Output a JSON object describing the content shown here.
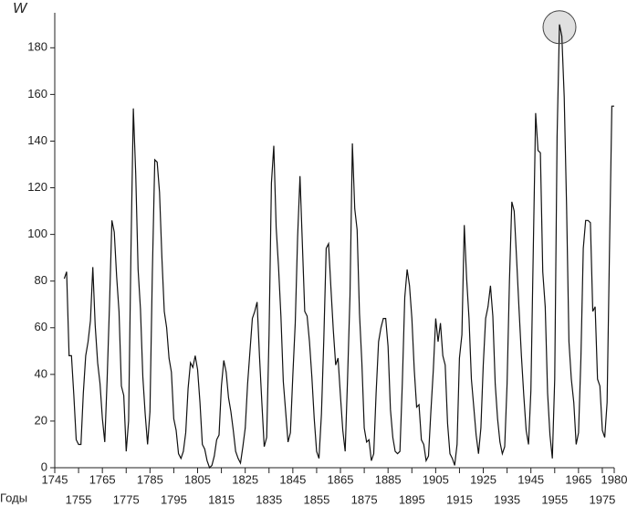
{
  "chart_data": {
    "type": "line",
    "y_label": "W",
    "x_label": "Годы",
    "color": "#111111",
    "x": [
      1749,
      1750,
      1751,
      1752,
      1753,
      1754,
      1755,
      1756,
      1757,
      1758,
      1759,
      1760,
      1761,
      1762,
      1763,
      1764,
      1765,
      1766,
      1767,
      1768,
      1769,
      1770,
      1771,
      1772,
      1773,
      1774,
      1775,
      1776,
      1777,
      1778,
      1779,
      1780,
      1781,
      1782,
      1783,
      1784,
      1785,
      1786,
      1787,
      1788,
      1789,
      1790,
      1791,
      1792,
      1793,
      1794,
      1795,
      1796,
      1797,
      1798,
      1799,
      1800,
      1801,
      1802,
      1803,
      1804,
      1805,
      1806,
      1807,
      1808,
      1809,
      1810,
      1811,
      1812,
      1813,
      1814,
      1815,
      1816,
      1817,
      1818,
      1819,
      1820,
      1821,
      1822,
      1823,
      1824,
      1825,
      1826,
      1827,
      1828,
      1829,
      1830,
      1831,
      1832,
      1833,
      1834,
      1835,
      1836,
      1837,
      1838,
      1839,
      1840,
      1841,
      1842,
      1843,
      1844,
      1845,
      1846,
      1847,
      1848,
      1849,
      1850,
      1851,
      1852,
      1853,
      1854,
      1855,
      1856,
      1857,
      1858,
      1859,
      1860,
      1861,
      1862,
      1863,
      1864,
      1865,
      1866,
      1867,
      1868,
      1869,
      1870,
      1871,
      1872,
      1873,
      1874,
      1875,
      1876,
      1877,
      1878,
      1879,
      1880,
      1881,
      1882,
      1883,
      1884,
      1885,
      1886,
      1887,
      1888,
      1889,
      1890,
      1891,
      1892,
      1893,
      1894,
      1895,
      1896,
      1897,
      1898,
      1899,
      1900,
      1901,
      1902,
      1903,
      1904,
      1905,
      1906,
      1907,
      1908,
      1909,
      1910,
      1911,
      1912,
      1913,
      1914,
      1915,
      1916,
      1917,
      1918,
      1919,
      1920,
      1921,
      1922,
      1923,
      1924,
      1925,
      1926,
      1927,
      1928,
      1929,
      1930,
      1931,
      1932,
      1933,
      1934,
      1935,
      1936,
      1937,
      1938,
      1939,
      1940,
      1941,
      1942,
      1943,
      1944,
      1945,
      1946,
      1947,
      1948,
      1949,
      1950,
      1951,
      1952,
      1953,
      1954,
      1955,
      1956,
      1957,
      1958,
      1959,
      1960,
      1961,
      1962,
      1963,
      1964,
      1965,
      1966,
      1967,
      1968,
      1969,
      1970,
      1971,
      1972,
      1973,
      1974,
      1975,
      1976,
      1977,
      1978,
      1979,
      1980
    ],
    "values": [
      81,
      84,
      48,
      48,
      31,
      12,
      10,
      10,
      32,
      48,
      54,
      63,
      86,
      61,
      45,
      36,
      21,
      11,
      38,
      70,
      106,
      101,
      82,
      67,
      35,
      31,
      7,
      20,
      93,
      154,
      126,
      85,
      68,
      39,
      23,
      10,
      24,
      83,
      132,
      131,
      118,
      90,
      67,
      60,
      47,
      41,
      21,
      16,
      6,
      4,
      7,
      15,
      34,
      45,
      43,
      48,
      42,
      28,
      10,
      8,
      3,
      0,
      1,
      5,
      12,
      14,
      35,
      46,
      41,
      30,
      24,
      16,
      7,
      4,
      2,
      9,
      17,
      36,
      50,
      64,
      67,
      71,
      48,
      28,
      9,
      13,
      57,
      122,
      138,
      103,
      86,
      65,
      37,
      24,
      11,
      15,
      40,
      62,
      99,
      125,
      96,
      67,
      65,
      54,
      39,
      21,
      7,
      4,
      23,
      55,
      94,
      96,
      77,
      59,
      44,
      47,
      31,
      16,
      7,
      38,
      74,
      139,
      111,
      102,
      66,
      45,
      17,
      11,
      12,
      3,
      6,
      32,
      54,
      60,
      64,
      64,
      52,
      25,
      13,
      7,
      6,
      7,
      36,
      73,
      85,
      78,
      64,
      42,
      26,
      27,
      12,
      10,
      3,
      5,
      24,
      42,
      64,
      54,
      62,
      48,
      44,
      19,
      6,
      4,
      1,
      10,
      47,
      57,
      104,
      81,
      64,
      38,
      26,
      14,
      6,
      17,
      44,
      64,
      69,
      78,
      65,
      36,
      21,
      11,
      6,
      9,
      36,
      80,
      114,
      110,
      89,
      68,
      48,
      31,
      16,
      10,
      33,
      93,
      152,
      136,
      135,
      84,
      69,
      32,
      14,
      4,
      38,
      142,
      190,
      185,
      159,
      112,
      54,
      38,
      28,
      10,
      15,
      47,
      94,
      106,
      106,
      105,
      67,
      69,
      38,
      35,
      16,
      13,
      28,
      93,
      155,
      155
    ],
    "xlim": [
      1745,
      1980
    ],
    "ylim": [
      0,
      195
    ],
    "xticks": [
      1745,
      1755,
      1765,
      1775,
      1785,
      1795,
      1805,
      1815,
      1825,
      1835,
      1845,
      1855,
      1865,
      1875,
      1885,
      1895,
      1905,
      1915,
      1925,
      1935,
      1945,
      1955,
      1965,
      1975,
      1980
    ],
    "yticks": [
      0,
      20,
      40,
      60,
      80,
      100,
      120,
      140,
      160,
      180
    ]
  }
}
